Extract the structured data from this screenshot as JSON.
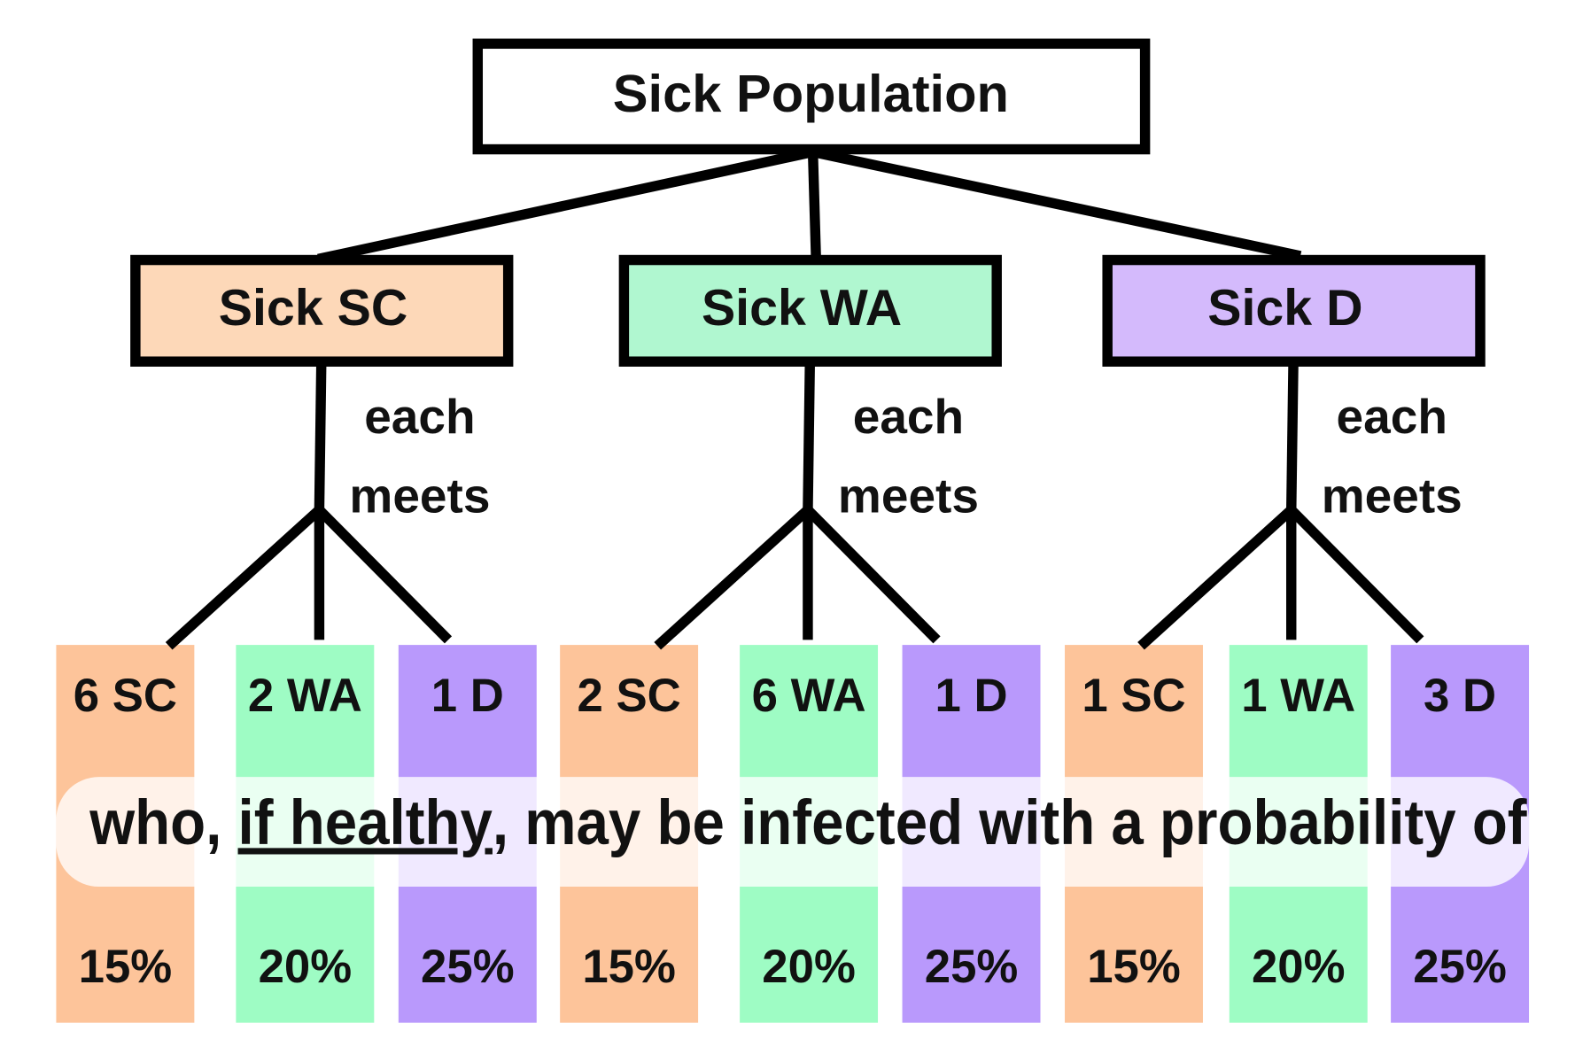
{
  "title": "Sick Population",
  "groups": [
    {
      "label": "Sick SC",
      "note": [
        "each",
        "meets"
      ],
      "contacts": [
        {
          "label": "6 SC",
          "probability": "15%"
        },
        {
          "label": "2 WA",
          "probability": "20%"
        },
        {
          "label": "1 D",
          "probability": "25%"
        }
      ]
    },
    {
      "label": "Sick WA",
      "note": [
        "each",
        "meets"
      ],
      "contacts": [
        {
          "label": "2 SC",
          "probability": "15%"
        },
        {
          "label": "6 WA",
          "probability": "20%"
        },
        {
          "label": "1 D",
          "probability": "25%"
        }
      ]
    },
    {
      "label": "Sick D",
      "note": [
        "each",
        "meets"
      ],
      "contacts": [
        {
          "label": "1 SC",
          "probability": "15%"
        },
        {
          "label": "1 WA",
          "probability": "20%"
        },
        {
          "label": "3 D",
          "probability": "25%"
        }
      ]
    }
  ],
  "sentence": {
    "before": "who, ",
    "link": "if healthy",
    "after": ", may be infected with a probability of"
  }
}
